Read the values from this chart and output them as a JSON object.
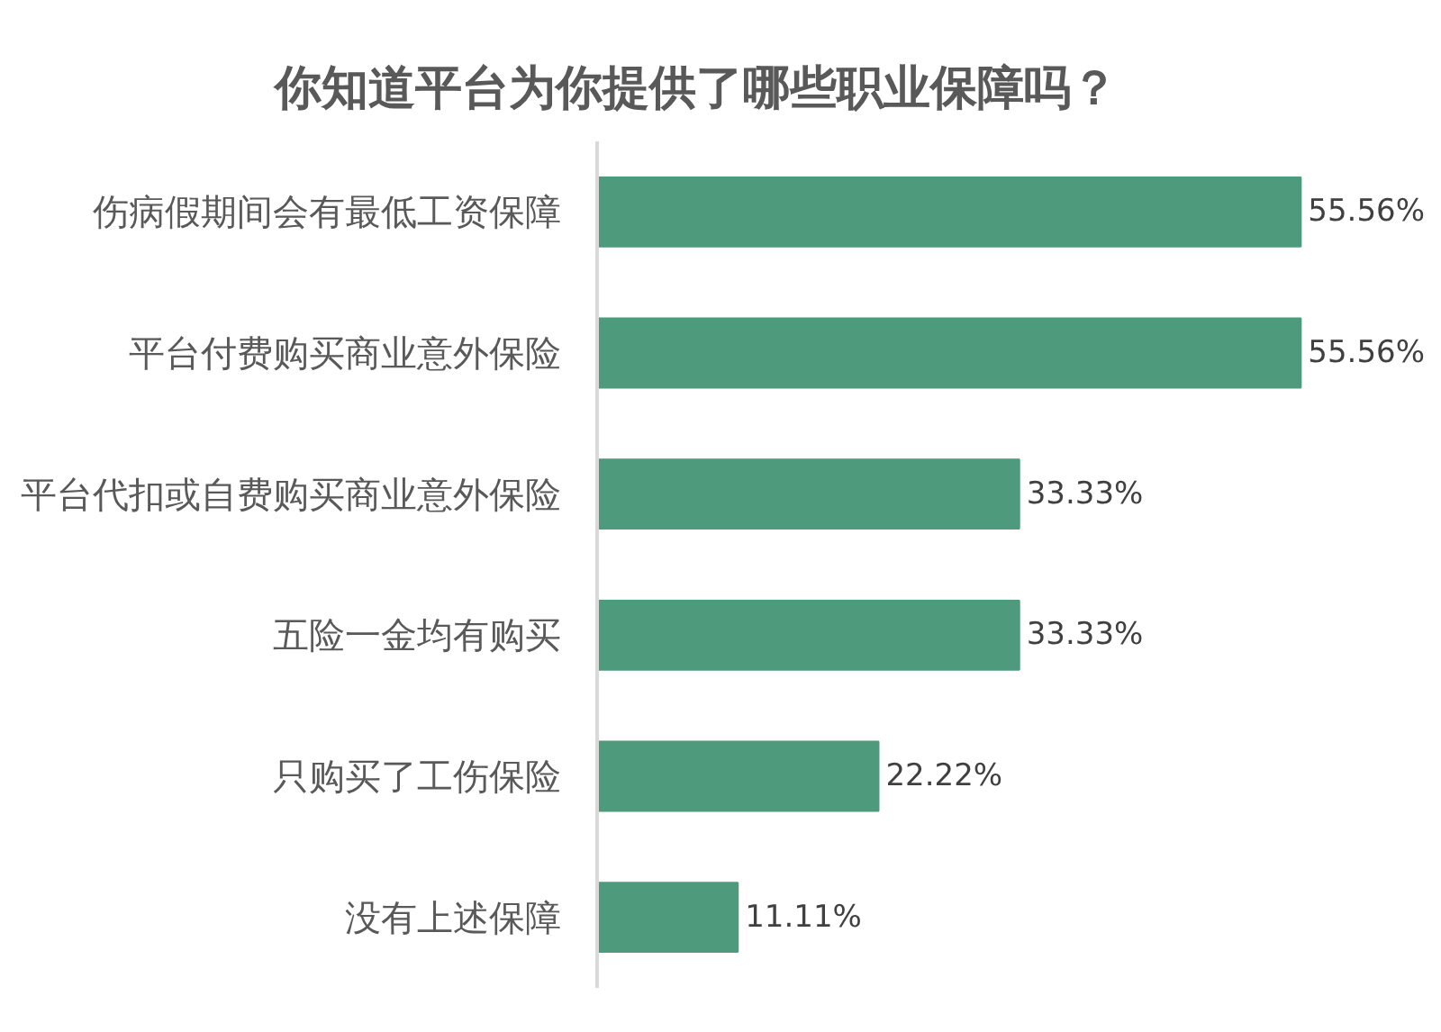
{
  "chart_data": {
    "type": "bar",
    "orientation": "horizontal",
    "title": "你知道平台为你提供了哪些职业保障吗？",
    "categories": [
      "伤病假期间会有最低工资保障",
      "平台付费购买商业意外保险",
      "平台代扣或自费购买商业意外保险",
      "五险一金均有购买",
      "只购买了工伤保险",
      "没有上述保障"
    ],
    "values": [
      55.56,
      55.56,
      33.33,
      33.33,
      22.22,
      11.11
    ],
    "value_labels": [
      "55.56%",
      "55.56%",
      "33.33%",
      "33.33%",
      "22.22%",
      "11.11%"
    ],
    "color": "#4e9a7c"
  }
}
